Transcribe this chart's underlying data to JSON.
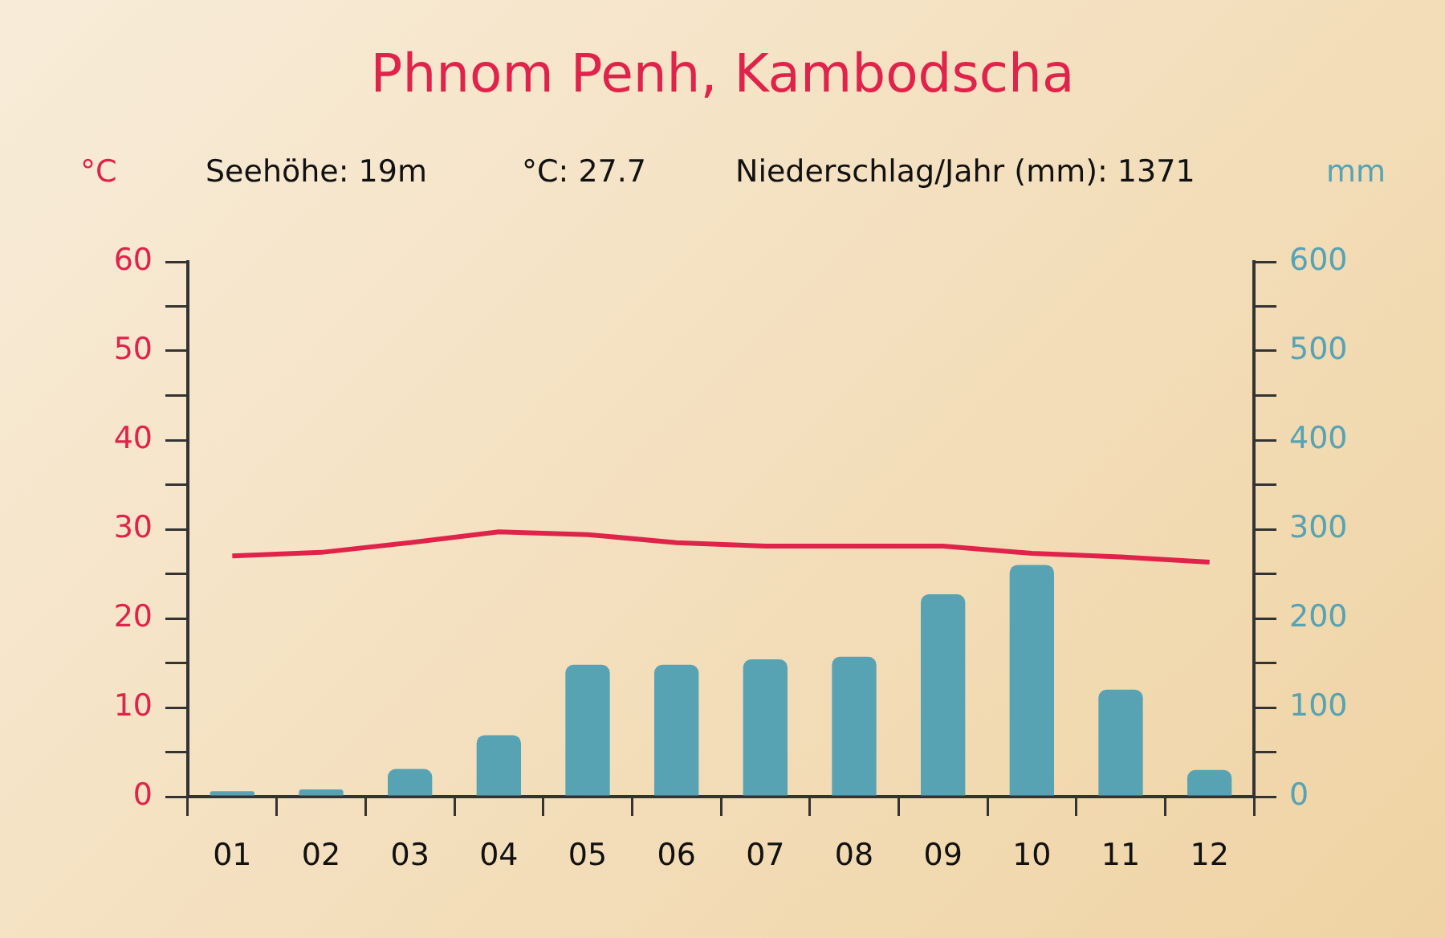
{
  "chart_data": {
    "type": "bar",
    "title": "Phnom Penh, Kambodscha",
    "ylabel": "°C",
    "y2label": "mm",
    "annotations": [
      "Seehöhe: 19m",
      "°C: 27.7",
      "Niederschlag/Jahr (mm): 1371"
    ],
    "categories": [
      "01",
      "02",
      "03",
      "04",
      "05",
      "06",
      "07",
      "08",
      "09",
      "10",
      "11",
      "12"
    ],
    "series": [
      {
        "type": "line",
        "color": "#e0234a",
        "values": [
          27.0,
          27.4,
          28.5,
          29.7,
          29.4,
          28.5,
          28.1,
          28.1,
          28.1,
          27.3,
          26.9,
          26.3
        ]
      },
      {
        "axis": "y2",
        "color": "#57a3b3",
        "values": [
          6,
          8,
          31,
          69,
          148,
          148,
          154,
          157,
          227,
          260,
          120,
          30
        ]
      }
    ],
    "ylim": [
      0,
      60
    ],
    "yticks": [
      0,
      {
        "value": 5,
        "label": null
      },
      10,
      {
        "value": 15,
        "label": null
      },
      20,
      {
        "value": 25,
        "label": null
      },
      30,
      {
        "value": 35,
        "label": null
      },
      40,
      {
        "value": 45,
        "label": null
      },
      50,
      {
        "value": 55,
        "label": null
      },
      60
    ],
    "y2lim": [
      0,
      600
    ],
    "y2ticks": [
      0,
      {
        "value": 50,
        "label": null
      },
      100,
      {
        "value": 150,
        "label": null
      },
      200,
      {
        "value": 250,
        "label": null
      },
      300,
      {
        "value": 350,
        "label": null
      },
      400,
      {
        "value": 450,
        "label": null
      },
      500,
      {
        "value": 550,
        "label": null
      },
      600
    ],
    "grid": false,
    "legend": false,
    "marker": "none",
    "line_style": "solid"
  }
}
